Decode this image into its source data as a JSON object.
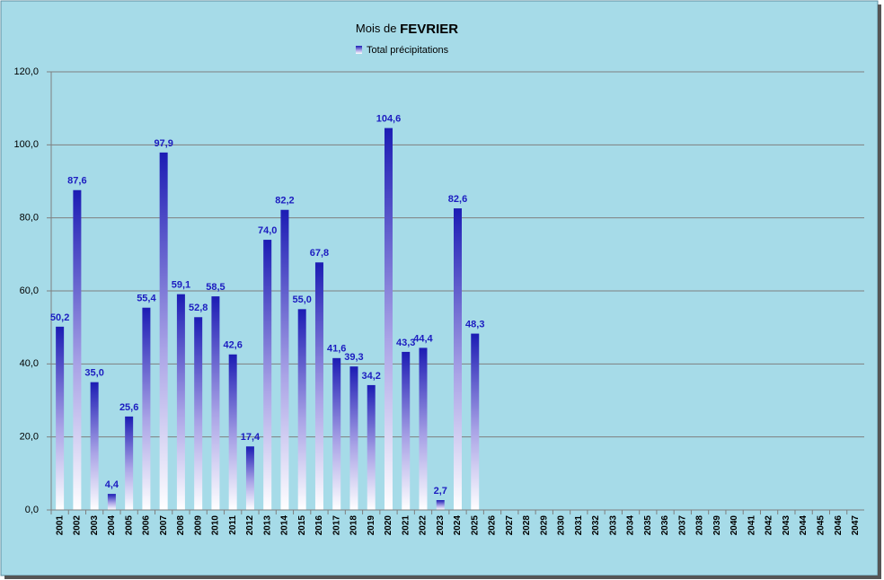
{
  "chart_data": {
    "type": "bar",
    "title": "Mois de FEVRIER",
    "legend": "Total précipitations",
    "legend_position": "top",
    "series": [
      {
        "name": "Total précipitations",
        "color": "#1c1cb4",
        "values": [
          50.2,
          87.6,
          35.0,
          4.4,
          25.6,
          55.4,
          97.9,
          59.1,
          52.8,
          58.5,
          42.6,
          17.4,
          74.0,
          82.2,
          55.0,
          67.8,
          41.6,
          39.3,
          34.2,
          104.6,
          43.3,
          44.4,
          2.7,
          82.6,
          48.3,
          null,
          null,
          null,
          null,
          null,
          null,
          null,
          null,
          null,
          null,
          null,
          null,
          null,
          null,
          null,
          null,
          null,
          null,
          null,
          null,
          null,
          null
        ],
        "value_labels": [
          "50,2",
          "87,6",
          "35,0",
          "4,4",
          "25,6",
          "55,4",
          "97,9",
          "59,1",
          "52,8",
          "58,5",
          "42,6",
          "17,4",
          "74,0",
          "82,2",
          "55,0",
          "67,8",
          "41,6",
          "39,3",
          "34,2",
          "104,6",
          "43,3",
          "44,4",
          "2,7",
          "82,6",
          "48,3",
          null,
          null,
          null,
          null,
          null,
          null,
          null,
          null,
          null,
          null,
          null,
          null,
          null,
          null,
          null,
          null,
          null,
          null,
          null,
          null,
          null,
          null
        ]
      }
    ],
    "categories": [
      "2001",
      "2002",
      "2003",
      "2004",
      "2005",
      "2006",
      "2007",
      "2008",
      "2009",
      "2010",
      "2011",
      "2012",
      "2013",
      "2014",
      "2015",
      "2016",
      "2017",
      "2018",
      "2019",
      "2020",
      "2021",
      "2022",
      "2023",
      "2024",
      "2025",
      "2026",
      "2027",
      "2028",
      "2029",
      "2030",
      "2031",
      "2032",
      "2033",
      "2034",
      "2035",
      "2036",
      "2037",
      "2038",
      "2039",
      "2040",
      "2041",
      "2042",
      "2043",
      "2044",
      "2045",
      "2046",
      "2047"
    ],
    "ylim": [
      0,
      120
    ],
    "yticks": [
      {
        "value": 0,
        "label": "0,0"
      },
      {
        "value": 20,
        "label": "20,0"
      },
      {
        "value": 40,
        "label": "40,0"
      },
      {
        "value": 60,
        "label": "60,0"
      },
      {
        "value": 80,
        "label": "80,0"
      },
      {
        "value": 100,
        "label": "100,0"
      },
      {
        "value": 120,
        "label": "120,0"
      }
    ],
    "grid": true
  }
}
